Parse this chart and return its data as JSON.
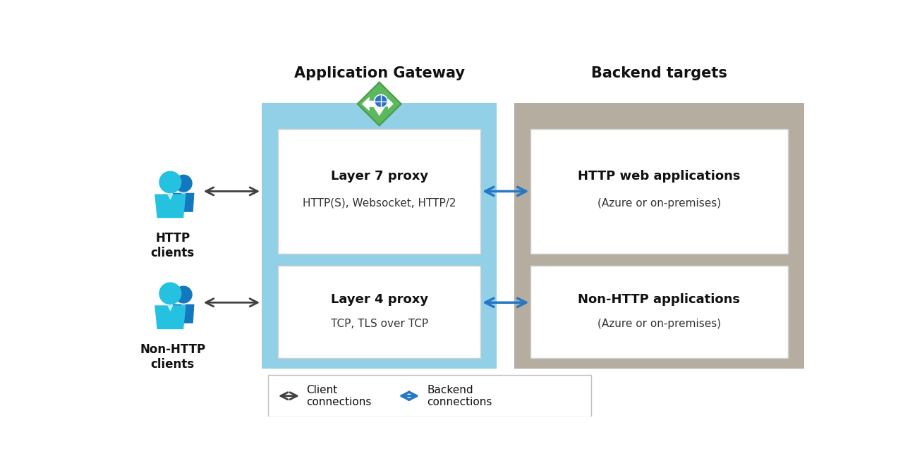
{
  "bg_color": "#ffffff",
  "title_app_gateway": "Application Gateway",
  "title_backend": "Backend targets",
  "layer7_title": "Layer 7 proxy",
  "layer7_sub": "HTTP(S), Websocket, HTTP/2",
  "layer4_title": "Layer 4 proxy",
  "layer4_sub": "TCP, TLS over TCP",
  "http_web_title": "HTTP web applications",
  "http_web_sub": "(Azure or on-premises)",
  "non_http_title": "Non-HTTP applications",
  "non_http_sub": "(Azure or on-premises)",
  "http_clients_label": "HTTP\nclients",
  "non_http_clients_label": "Non-HTTP\nclients",
  "legend_client": "Client\nconnections",
  "legend_backend": "Backend\nconnections",
  "gateway_bg_color": "#92D0E8",
  "backend_bg_color": "#B5ADA0",
  "white_box_color": "#ffffff",
  "blue_arrow_color": "#2778C4",
  "black_arrow_color": "#404040",
  "person_light": "#25C1E0",
  "person_dark": "#1478BE",
  "green_diamond": "#5CB85C",
  "green_diamond_dark": "#4A9A4A"
}
